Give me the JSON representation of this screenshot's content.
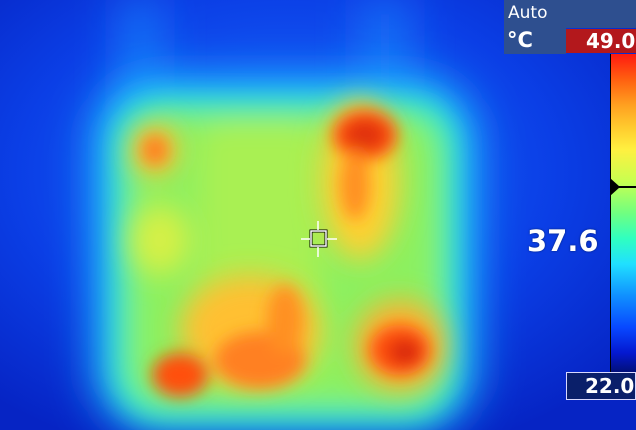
{
  "camera": {
    "range_mode": "Auto",
    "unit": "°C",
    "scale_max": "49.0",
    "scale_min": "22.0",
    "spot_temperature": "37.6"
  },
  "colors": {
    "palette": "rainbow",
    "background_cold": "#0a2fd6",
    "overlay_box": "#2e4f8f",
    "max_box": "#b3181c",
    "min_box": "#0a1f6a",
    "hot_spot": "#e03010",
    "warm_body": "#8cf060"
  },
  "icons": {
    "spot_meter": "crosshair-icon",
    "scale_pointer": "triangle-pointer-icon"
  }
}
